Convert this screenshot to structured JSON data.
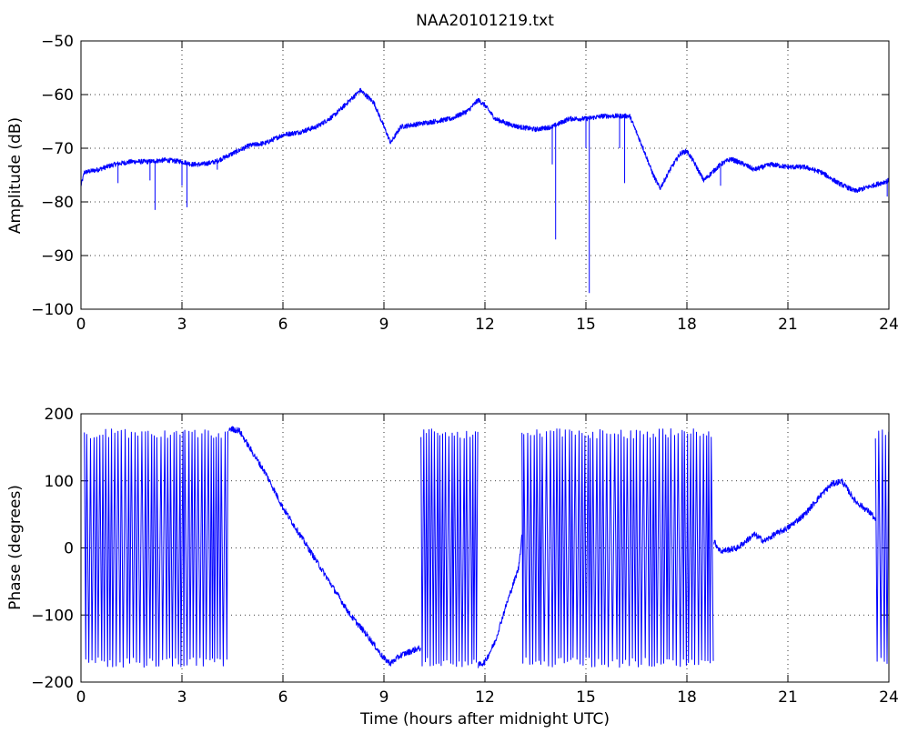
{
  "window": {
    "title": "NAA20101219.txt"
  },
  "chart_data": [
    {
      "type": "line",
      "title": "NAA20101219.txt",
      "xlabel": "",
      "ylabel": "Amplitude (dB)",
      "xlim": [
        0,
        24
      ],
      "ylim": [
        -100,
        -50
      ],
      "xticks": [
        "0",
        "3",
        "6",
        "9",
        "12",
        "15",
        "18",
        "21",
        "24"
      ],
      "yticks": [
        "−100",
        "−90",
        "−80",
        "−70",
        "−60",
        "−50"
      ],
      "grid": true,
      "color": "#0000ff",
      "series": [
        {
          "points": [
            [
              0,
              -77
            ],
            [
              0.1,
              -74.5
            ],
            [
              0.5,
              -74
            ],
            [
              1,
              -73
            ],
            [
              1.5,
              -72.5
            ],
            [
              2,
              -72.5
            ],
            [
              2.5,
              -72.2
            ],
            [
              3,
              -72.5
            ],
            [
              3.3,
              -73
            ],
            [
              3.6,
              -73
            ],
            [
              4,
              -72.5
            ],
            [
              4.5,
              -71
            ],
            [
              5,
              -69.5
            ],
            [
              5.5,
              -69
            ],
            [
              6,
              -67.5
            ],
            [
              6.5,
              -67
            ],
            [
              7,
              -66
            ],
            [
              7.5,
              -64
            ],
            [
              8,
              -61
            ],
            [
              8.3,
              -59.2
            ],
            [
              8.7,
              -61.5
            ],
            [
              9,
              -66
            ],
            [
              9.2,
              -69
            ],
            [
              9.5,
              -66
            ],
            [
              10,
              -65.5
            ],
            [
              10.5,
              -65
            ],
            [
              11,
              -64.5
            ],
            [
              11.5,
              -63
            ],
            [
              11.8,
              -61
            ],
            [
              12,
              -62
            ],
            [
              12.3,
              -64.5
            ],
            [
              12.7,
              -65.5
            ],
            [
              13,
              -66
            ],
            [
              13.5,
              -66.5
            ],
            [
              14,
              -66
            ],
            [
              14.5,
              -64.5
            ],
            [
              15,
              -64.5
            ],
            [
              15.5,
              -64
            ],
            [
              16,
              -64
            ],
            [
              16.3,
              -64
            ],
            [
              16.7,
              -70
            ],
            [
              17,
              -75
            ],
            [
              17.2,
              -77.5
            ],
            [
              17.5,
              -74
            ],
            [
              17.8,
              -71
            ],
            [
              18,
              -70.5
            ],
            [
              18.2,
              -72.5
            ],
            [
              18.5,
              -76
            ],
            [
              19,
              -73
            ],
            [
              19.3,
              -72
            ],
            [
              19.7,
              -73
            ],
            [
              20,
              -74
            ],
            [
              20.5,
              -73
            ],
            [
              21,
              -73.5
            ],
            [
              21.5,
              -73.5
            ],
            [
              22,
              -74.5
            ],
            [
              22.5,
              -76.5
            ],
            [
              23,
              -78
            ],
            [
              23.5,
              -77
            ],
            [
              24,
              -76
            ],
            [
              24,
              -74.5
            ]
          ],
          "spikes": [
            [
              1.1,
              -76.5
            ],
            [
              2.05,
              -76
            ],
            [
              2.2,
              -81.5
            ],
            [
              3,
              -77
            ],
            [
              3.15,
              -81
            ],
            [
              4.05,
              -74
            ],
            [
              14,
              -73
            ],
            [
              14.1,
              -87
            ],
            [
              15,
              -70
            ],
            [
              15.1,
              -97
            ],
            [
              16,
              -70
            ],
            [
              16.15,
              -76.5
            ],
            [
              19,
              -77
            ],
            [
              23.95,
              -79
            ]
          ]
        }
      ]
    },
    {
      "type": "line",
      "title": "",
      "xlabel": "Time (hours after midnight UTC)",
      "ylabel": "Phase (degrees)",
      "xlim": [
        0,
        24
      ],
      "ylim": [
        -200,
        200
      ],
      "xticks": [
        "0",
        "3",
        "6",
        "9",
        "12",
        "15",
        "18",
        "21",
        "24"
      ],
      "yticks": [
        "−200",
        "−100",
        "0",
        "100",
        "200"
      ],
      "grid": true,
      "color": "#0000ff",
      "wrap_bands": [
        [
          0.1,
          4.4
        ],
        [
          10.1,
          11.8
        ],
        [
          13.1,
          18.8
        ],
        [
          23.6,
          24.0
        ]
      ],
      "series": [
        {
          "points": [
            [
              4.4,
              178
            ],
            [
              4.7,
              175
            ],
            [
              5,
              150
            ],
            [
              5.5,
              110
            ],
            [
              6,
              60
            ],
            [
              6.5,
              20
            ],
            [
              7,
              -20
            ],
            [
              7.5,
              -60
            ],
            [
              8,
              -100
            ],
            [
              8.5,
              -130
            ],
            [
              9,
              -165
            ],
            [
              9.2,
              -172
            ],
            [
              9.5,
              -160
            ],
            [
              10,
              -150
            ],
            [
              10.1,
              -150
            ],
            [
              11.8,
              -175
            ],
            [
              12,
              -170
            ],
            [
              12.3,
              -140
            ],
            [
              12.6,
              -90
            ],
            [
              13,
              -30
            ],
            [
              13.1,
              20
            ],
            [
              18.8,
              10
            ],
            [
              19,
              -5
            ],
            [
              19.5,
              0
            ],
            [
              20,
              20
            ],
            [
              20.3,
              10
            ],
            [
              20.6,
              20
            ],
            [
              21,
              30
            ],
            [
              21.5,
              50
            ],
            [
              22,
              80
            ],
            [
              22.3,
              95
            ],
            [
              22.6,
              100
            ],
            [
              23,
              70
            ],
            [
              23.5,
              50
            ],
            [
              23.6,
              40
            ]
          ]
        }
      ]
    }
  ]
}
